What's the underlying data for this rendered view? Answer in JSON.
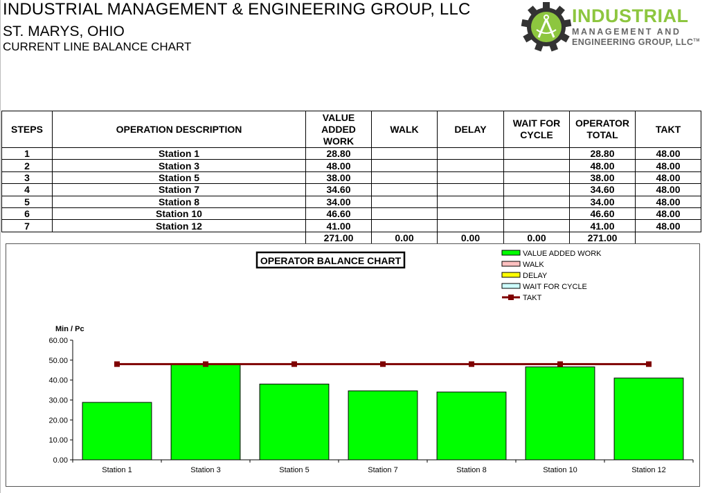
{
  "header": {
    "company": "INDUSTRIAL MANAGEMENT & ENGINEERING GROUP, LLC",
    "location": "ST. MARYS, OHIO",
    "subtitle": "CURRENT LINE BALANCE CHART"
  },
  "logo": {
    "line1": "INDUSTRIAL",
    "line2": "MANAGEMENT AND",
    "line3": "ENGINEERING GROUP, LLC",
    "tm": "TM",
    "colors": {
      "gear": "#333333",
      "circle": "#8dc63f",
      "text": "#8dc63f",
      "subtext": "#666666"
    }
  },
  "table": {
    "headers": {
      "steps": "STEPS",
      "desc": "OPERATION DESCRIPTION",
      "va1": "VALUE",
      "va2": "ADDED",
      "va3": "WORK",
      "walk": "WALK",
      "delay": "DELAY",
      "wait1": "WAIT FOR",
      "wait2": "CYCLE",
      "op1": "OPERATOR",
      "op2": "TOTAL",
      "takt": "TAKT"
    },
    "rows": [
      {
        "step": "1",
        "desc": "Station 1",
        "va": "28.80",
        "op": "28.80",
        "takt": "48.00"
      },
      {
        "step": "2",
        "desc": "Station 3",
        "va": "48.00",
        "op": "48.00",
        "takt": "48.00"
      },
      {
        "step": "3",
        "desc": "Station 5",
        "va": "38.00",
        "op": "38.00",
        "takt": "48.00"
      },
      {
        "step": "4",
        "desc": "Station 7",
        "va": "34.60",
        "op": "34.60",
        "takt": "48.00"
      },
      {
        "step": "5",
        "desc": "Station 8",
        "va": "34.00",
        "op": "34.00",
        "takt": "48.00"
      },
      {
        "step": "6",
        "desc": "Station 10",
        "va": "46.60",
        "op": "46.60",
        "takt": "48.00"
      },
      {
        "step": "7",
        "desc": "Station 12",
        "va": "41.00",
        "op": "41.00",
        "takt": "48.00"
      }
    ],
    "totals": {
      "va": "271.00",
      "walk": "0.00",
      "delay": "0.00",
      "wait": "0.00",
      "op": "271.00"
    }
  },
  "chart_data": {
    "type": "bar",
    "title": "OPERATOR BALANCE CHART",
    "ylabel": "Min / Pc",
    "xlabel": "",
    "ylim": [
      0,
      60
    ],
    "yticks": [
      "0.00",
      "10.00",
      "20.00",
      "30.00",
      "40.00",
      "50.00",
      "60.00"
    ],
    "grid": false,
    "legend_position": "top-right",
    "categories": [
      "Station 1",
      "Station 3",
      "Station 5",
      "Station 7",
      "Station 8",
      "Station 10",
      "Station 12"
    ],
    "series": [
      {
        "name": "VALUE ADDED WORK",
        "type": "bar",
        "color": "#00ff00",
        "values": [
          28.8,
          48.0,
          38.0,
          34.6,
          34.0,
          46.6,
          41.0
        ]
      },
      {
        "name": "WALK",
        "type": "bar",
        "color": "#ffc0c0",
        "values": [
          0,
          0,
          0,
          0,
          0,
          0,
          0
        ]
      },
      {
        "name": "DELAY",
        "type": "bar",
        "color": "#ffff00",
        "values": [
          0,
          0,
          0,
          0,
          0,
          0,
          0
        ]
      },
      {
        "name": "WAIT FOR CYCLE",
        "type": "bar",
        "color": "#ccffff",
        "values": [
          0,
          0,
          0,
          0,
          0,
          0,
          0
        ]
      },
      {
        "name": "TAKT",
        "type": "line",
        "color": "#7f0000",
        "values": [
          48,
          48,
          48,
          48,
          48,
          48,
          48
        ]
      }
    ]
  }
}
